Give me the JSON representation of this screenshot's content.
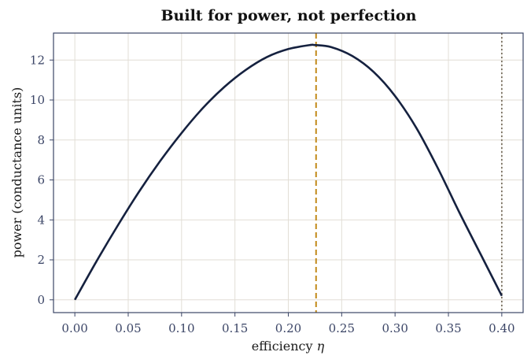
{
  "chart_data": {
    "type": "line",
    "title": "Built for power, not perfection",
    "xlabel": "efficiency",
    "xlabel_symbol": "η",
    "ylabel": "power (conductance units)",
    "xlim": [
      -0.02,
      0.42
    ],
    "ylim": [
      -0.64,
      13.35
    ],
    "x_ticks": [
      0.0,
      0.05,
      0.1,
      0.15,
      0.2,
      0.25,
      0.3,
      0.35,
      0.4
    ],
    "x_tick_labels": [
      "0.00",
      "0.05",
      "0.10",
      "0.15",
      "0.20",
      "0.25",
      "0.30",
      "0.35",
      "0.40"
    ],
    "y_ticks": [
      0,
      2,
      4,
      6,
      8,
      10,
      12
    ],
    "y_tick_labels": [
      "0",
      "2",
      "4",
      "6",
      "8",
      "10",
      "12"
    ],
    "grid": true,
    "series": [
      {
        "color": "#15213f",
        "x": [
          0.0,
          0.02,
          0.04,
          0.06,
          0.08,
          0.1,
          0.12,
          0.14,
          0.16,
          0.18,
          0.2,
          0.22,
          0.225,
          0.24,
          0.26,
          0.28,
          0.3,
          0.32,
          0.34,
          0.36,
          0.38,
          0.4
        ],
        "y": [
          0.0,
          1.9,
          3.7,
          5.4,
          6.95,
          8.35,
          9.6,
          10.65,
          11.5,
          12.15,
          12.55,
          12.75,
          12.75,
          12.65,
          12.2,
          11.4,
          10.2,
          8.6,
          6.6,
          4.4,
          2.3,
          0.2
        ]
      }
    ],
    "reference_lines": [
      {
        "x": 0.226,
        "color": "#c28a1a",
        "style": "dashed"
      },
      {
        "x": 0.4,
        "color": "#7a7060",
        "style": "dotted"
      }
    ]
  }
}
